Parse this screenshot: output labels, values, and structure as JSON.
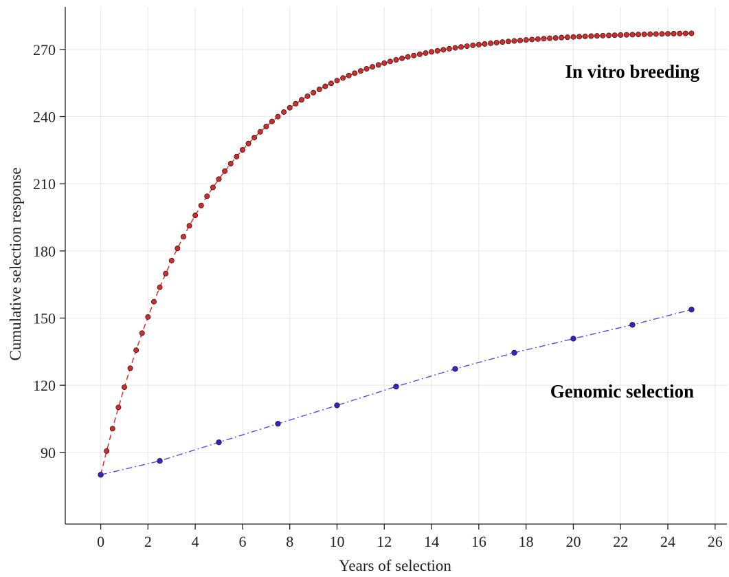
{
  "chart_data": {
    "type": "line",
    "xlabel": "Years of selection",
    "ylabel": "Cumulative selection response",
    "xlim": [
      -1.5,
      26.5
    ],
    "ylim": [
      58,
      289
    ],
    "xticks": [
      0,
      2,
      4,
      6,
      8,
      10,
      12,
      14,
      16,
      18,
      20,
      22,
      24,
      26
    ],
    "yticks": [
      90,
      120,
      150,
      180,
      210,
      240,
      270
    ],
    "grid": true,
    "series": [
      {
        "name": "In vitro breeding",
        "color": "#e02020",
        "marker_color": "#c83030",
        "line_style": "dashed",
        "model": {
          "y0": 80,
          "y_max": 278,
          "rate": 0.22,
          "x_step": 0.25,
          "x_end": 25
        }
      },
      {
        "name": "Genomic selection",
        "color": "#4a4aff",
        "marker_color": "#2828c8",
        "line_style": "dashdot",
        "x": [
          0,
          2.5,
          5,
          7.5,
          10,
          12.5,
          15,
          17.5,
          20,
          22.5,
          25
        ],
        "y": [
          80,
          86.2,
          94.5,
          102.8,
          111,
          119.4,
          127.3,
          134.5,
          140.8,
          147,
          153.8
        ]
      }
    ],
    "annotations": [
      {
        "text": "In vitro breeding",
        "series": 0
      },
      {
        "text": "Genomic selection",
        "series": 1
      }
    ]
  }
}
